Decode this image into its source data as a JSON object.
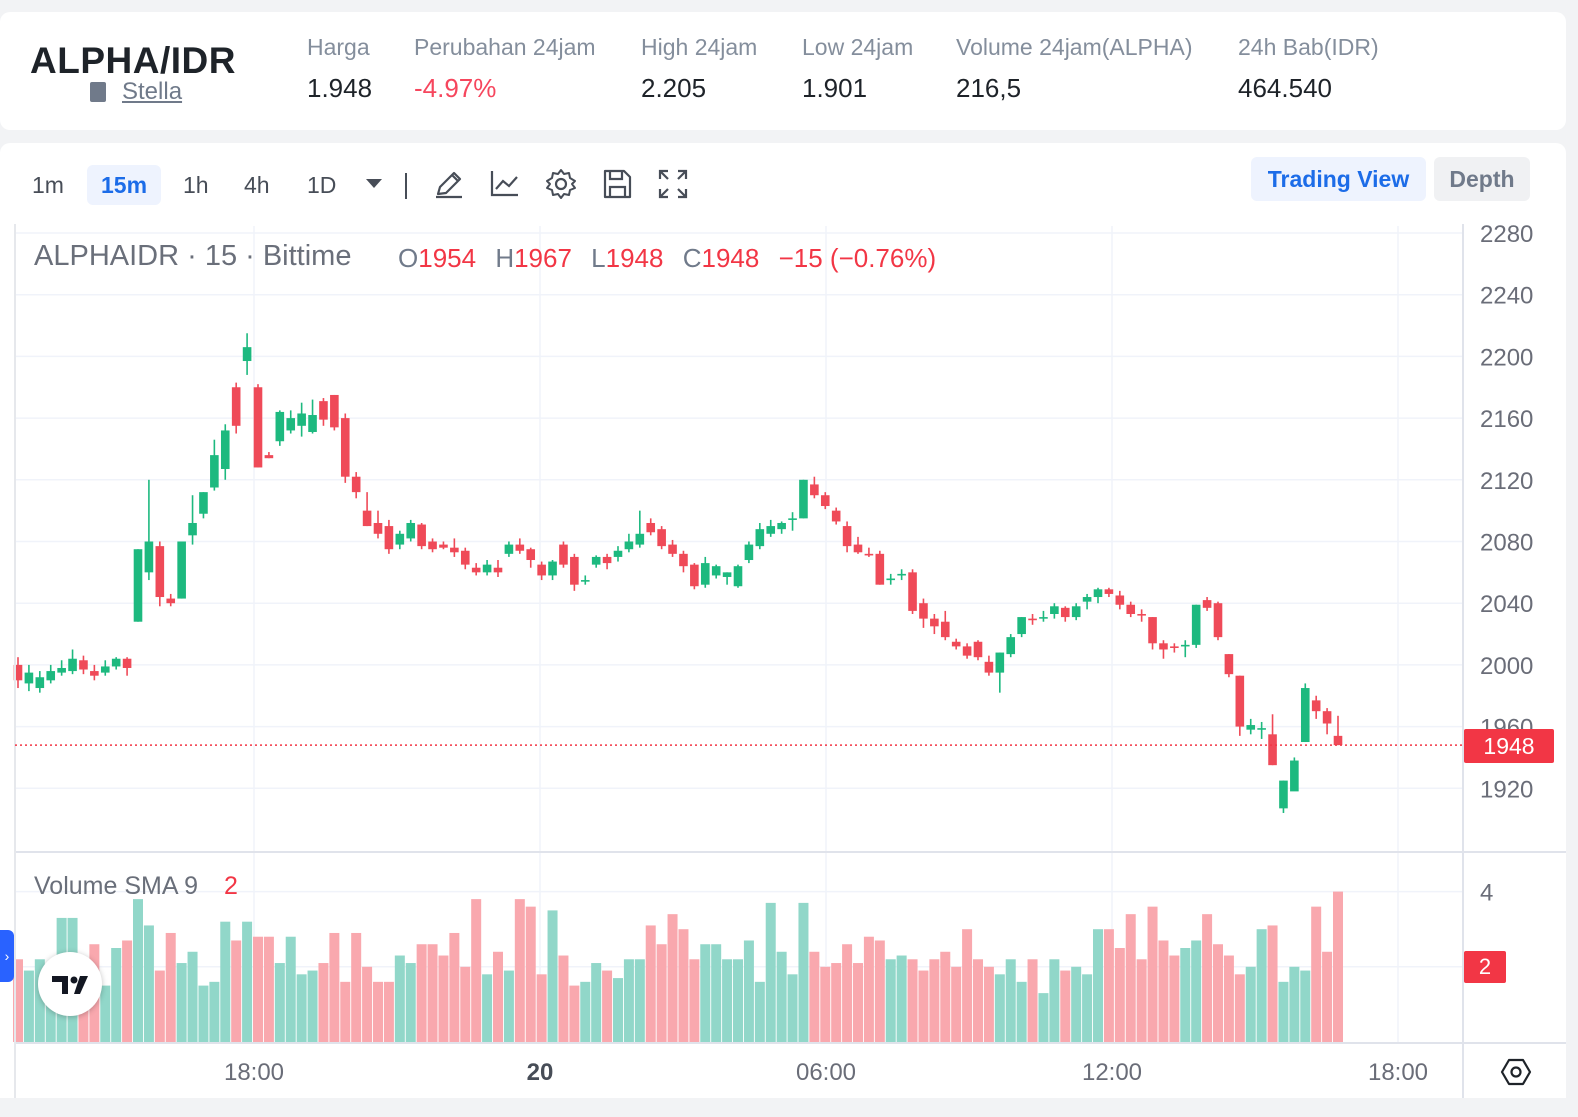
{
  "ticker": {
    "pair": "ALPHA/IDR",
    "sub_label": "Stella",
    "stats": [
      {
        "label": "Harga",
        "value": "1.948",
        "negative": false
      },
      {
        "label": "Perubahan 24jam",
        "value": "-4.97%",
        "negative": true
      },
      {
        "label": "High 24jam",
        "value": "2.205",
        "negative": false
      },
      {
        "label": "Low 24jam",
        "value": "1.901",
        "negative": false
      },
      {
        "label": "Volume 24jam(ALPHA)",
        "value": "216,5",
        "negative": false
      },
      {
        "label": "24h Bab(IDR)",
        "value": "464.540",
        "negative": false
      }
    ]
  },
  "toolbar": {
    "timeframes": [
      "1m",
      "15m",
      "1h",
      "4h",
      "1D"
    ],
    "active_timeframe": "15m",
    "icons": [
      "pencil-icon",
      "indicator-chart-icon",
      "gear-icon",
      "save-icon",
      "fullscreen-icon"
    ],
    "trading_view_label": "Trading View",
    "depth_label": "Depth"
  },
  "chart_data": {
    "type": "candlestick",
    "legend": {
      "symbol": "ALPHAIDR · 15 · Bittime"
    },
    "ohlc": {
      "o_key": "O",
      "o": "1954",
      "h_key": "H",
      "h": "1967",
      "l_key": "L",
      "l": "1948",
      "c_key": "C",
      "c": "1948",
      "change": "−15 (−0.76%)"
    },
    "last_price": "1948",
    "ylim": [
      1890,
      2290
    ],
    "y_ticks": [
      1920,
      1960,
      2000,
      2040,
      2080,
      2120,
      2160,
      2200,
      2240,
      2280
    ],
    "x_ticks": [
      "18:00",
      "20",
      "06:00",
      "12:00",
      "18:00"
    ],
    "candles": [
      [
        2000,
        1990,
        2005,
        1985
      ],
      [
        1988,
        1995,
        2000,
        1983
      ],
      [
        1985,
        1992,
        1996,
        1982
      ],
      [
        1990,
        1996,
        2000,
        1988
      ],
      [
        1995,
        1998,
        2003,
        1993
      ],
      [
        1996,
        2004,
        2010,
        1994
      ],
      [
        2003,
        1997,
        2006,
        1994
      ],
      [
        1996,
        1993,
        2000,
        1990
      ],
      [
        1995,
        1999,
        2003,
        1993
      ],
      [
        1999,
        2004,
        2005,
        1997
      ],
      [
        2004,
        1998,
        2005,
        1993
      ],
      [
        2028,
        2075,
        2075,
        2028
      ],
      [
        2060,
        2080,
        2120,
        2055
      ],
      [
        2077,
        2044,
        2080,
        2038
      ],
      [
        2043,
        2040,
        2046,
        2038
      ],
      [
        2043,
        2080,
        2080,
        2043
      ],
      [
        2084,
        2092,
        2110,
        2078
      ],
      [
        2098,
        2112,
        2112,
        2095
      ],
      [
        2115,
        2136,
        2146,
        2113
      ],
      [
        2127,
        2152,
        2156,
        2120
      ],
      [
        2180,
        2155,
        2183,
        2150
      ],
      [
        2197,
        2206,
        2215,
        2188
      ],
      [
        2180,
        2128,
        2182,
        2128
      ],
      [
        2136,
        2134,
        2138,
        2134
      ],
      [
        2145,
        2164,
        2165,
        2142
      ],
      [
        2152,
        2160,
        2165,
        2150
      ],
      [
        2155,
        2163,
        2170,
        2148
      ],
      [
        2151,
        2162,
        2172,
        2150
      ],
      [
        2171,
        2159,
        2173,
        2155
      ],
      [
        2175,
        2154,
        2175,
        2152
      ],
      [
        2160,
        2122,
        2163,
        2118
      ],
      [
        2122,
        2112,
        2125,
        2108
      ],
      [
        2100,
        2090,
        2112,
        2090
      ],
      [
        2092,
        2085,
        2100,
        2082
      ],
      [
        2090,
        2075,
        2094,
        2072
      ],
      [
        2078,
        2085,
        2087,
        2075
      ],
      [
        2082,
        2092,
        2094,
        2080
      ],
      [
        2091,
        2077,
        2092,
        2075
      ],
      [
        2080,
        2075,
        2082,
        2073
      ],
      [
        2078,
        2076,
        2080,
        2075
      ],
      [
        2076,
        2073,
        2082,
        2070
      ],
      [
        2074,
        2065,
        2076,
        2062
      ],
      [
        2063,
        2060,
        2066,
        2058
      ],
      [
        2060,
        2065,
        2068,
        2058
      ],
      [
        2063,
        2060,
        2068,
        2057
      ],
      [
        2072,
        2078,
        2080,
        2070
      ],
      [
        2078,
        2074,
        2082,
        2072
      ],
      [
        2075,
        2068,
        2076,
        2063
      ],
      [
        2065,
        2058,
        2067,
        2055
      ],
      [
        2058,
        2067,
        2068,
        2055
      ],
      [
        2078,
        2065,
        2080,
        2063
      ],
      [
        2070,
        2052,
        2072,
        2048
      ],
      [
        2055,
        2055,
        2058,
        2052
      ],
      [
        2065,
        2070,
        2071,
        2063
      ],
      [
        2070,
        2066,
        2072,
        2062
      ],
      [
        2070,
        2074,
        2077,
        2067
      ],
      [
        2075,
        2080,
        2085,
        2073
      ],
      [
        2078,
        2085,
        2100,
        2076
      ],
      [
        2092,
        2086,
        2095,
        2084
      ],
      [
        2088,
        2077,
        2090,
        2075
      ],
      [
        2078,
        2072,
        2081,
        2070
      ],
      [
        2072,
        2064,
        2074,
        2060
      ],
      [
        2065,
        2051,
        2066,
        2049
      ],
      [
        2052,
        2066,
        2070,
        2050
      ],
      [
        2058,
        2064,
        2065,
        2056
      ],
      [
        2057,
        2060,
        2060,
        2052
      ],
      [
        2051,
        2064,
        2065,
        2050
      ],
      [
        2068,
        2078,
        2080,
        2066
      ],
      [
        2077,
        2088,
        2092,
        2075
      ],
      [
        2085,
        2090,
        2094,
        2083
      ],
      [
        2088,
        2092,
        2093,
        2085
      ],
      [
        2094,
        2095,
        2099,
        2087
      ],
      [
        2095,
        2120,
        2120,
        2095
      ],
      [
        2117,
        2110,
        2122,
        2108
      ],
      [
        2110,
        2103,
        2112,
        2101
      ],
      [
        2100,
        2093,
        2102,
        2091
      ],
      [
        2090,
        2077,
        2093,
        2073
      ],
      [
        2078,
        2073,
        2083,
        2072
      ],
      [
        2072,
        2071,
        2076,
        2070
      ],
      [
        2072,
        2052,
        2074,
        2052
      ],
      [
        2055,
        2056,
        2059,
        2052
      ],
      [
        2058,
        2059,
        2062,
        2055
      ],
      [
        2060,
        2035,
        2062,
        2033
      ],
      [
        2040,
        2030,
        2043,
        2024
      ],
      [
        2030,
        2025,
        2033,
        2020
      ],
      [
        2028,
        2018,
        2035,
        2016
      ],
      [
        2015,
        2012,
        2017,
        2010
      ],
      [
        2012,
        2006,
        2014,
        2004
      ],
      [
        2015,
        2005,
        2016,
        2003
      ],
      [
        2002,
        1995,
        2006,
        1993
      ],
      [
        1995,
        2008,
        2008,
        1982
      ],
      [
        2007,
        2018,
        2020,
        2005
      ],
      [
        2020,
        2031,
        2031,
        2018
      ],
      [
        2030,
        2029,
        2033,
        2026
      ],
      [
        2030,
        2031,
        2035,
        2028
      ],
      [
        2033,
        2038,
        2040,
        2030
      ],
      [
        2037,
        2031,
        2038,
        2028
      ],
      [
        2031,
        2038,
        2040,
        2029
      ],
      [
        2041,
        2044,
        2046,
        2036
      ],
      [
        2044,
        2049,
        2050,
        2040
      ],
      [
        2049,
        2046,
        2050,
        2044
      ],
      [
        2045,
        2039,
        2048,
        2036
      ],
      [
        2039,
        2033,
        2041,
        2031
      ],
      [
        2033,
        2032,
        2036,
        2028
      ],
      [
        2031,
        2014,
        2031,
        2010
      ],
      [
        2014,
        2010,
        2016,
        2004
      ],
      [
        2012,
        2011,
        2014,
        2008
      ],
      [
        2012,
        2013,
        2016,
        2005
      ],
      [
        2013,
        2039,
        2039,
        2011
      ],
      [
        2042,
        2037,
        2044,
        2035
      ],
      [
        2040,
        2018,
        2041,
        2016
      ],
      [
        2007,
        1994,
        2007,
        1992
      ],
      [
        1993,
        1960,
        1993,
        1954
      ],
      [
        1958,
        1961,
        1965,
        1955
      ],
      [
        1958,
        1959,
        1963,
        1952
      ],
      [
        1955,
        1935,
        1968,
        1935
      ],
      [
        1907,
        1925,
        1925,
        1904
      ],
      [
        1918,
        1938,
        1940,
        1920
      ],
      [
        1950,
        1985,
        1988,
        1950
      ],
      [
        1977,
        1970,
        1980,
        1965
      ],
      [
        1970,
        1962,
        1972,
        1955
      ],
      [
        1954,
        1948,
        1967,
        1948
      ]
    ],
    "volumes": [
      2.2,
      1.9,
      2.2,
      1.8,
      3.3,
      3.3,
      2.1,
      2.6,
      1.5,
      2.5,
      2.7,
      3.8,
      3.1,
      1.9,
      2.9,
      2.1,
      2.4,
      1.5,
      1.6,
      3.2,
      2.7,
      3.2,
      2.8,
      2.8,
      2.1,
      2.8,
      1.8,
      1.9,
      2.1,
      2.9,
      1.6,
      2.9,
      2.0,
      1.6,
      1.6,
      2.3,
      2.1,
      2.6,
      2.6,
      2.3,
      2.9,
      2.0,
      3.8,
      1.8,
      2.4,
      1.9,
      3.8,
      3.6,
      1.8,
      3.5,
      2.3,
      1.5,
      1.6,
      2.1,
      1.9,
      1.7,
      2.2,
      2.2,
      3.1,
      2.6,
      3.4,
      3.0,
      2.2,
      2.6,
      2.6,
      2.2,
      2.2,
      2.7,
      1.6,
      3.7,
      2.4,
      1.8,
      3.7,
      2.4,
      2.0,
      2.1,
      2.6,
      2.1,
      2.8,
      2.7,
      2.2,
      2.3,
      2.2,
      1.9,
      2.2,
      2.4,
      2.0,
      3.0,
      2.2,
      2.0,
      1.8,
      2.2,
      1.6,
      2.2,
      1.3,
      2.2,
      1.9,
      2.0,
      1.8,
      3.0,
      3.0,
      2.5,
      3.4,
      2.2,
      3.6,
      2.7,
      2.3,
      2.5,
      2.7,
      3.4,
      2.6,
      2.3,
      1.8,
      2.0,
      3.0,
      3.1,
      1.6,
      2.0,
      1.9,
      3.6,
      2.4,
      4.0,
      2.3,
      2.2
    ],
    "vol_legend": {
      "label": "Volume SMA 9",
      "value": "2"
    },
    "vol_ticks": [
      "4"
    ],
    "vol_tag": "2"
  },
  "colors": {
    "up": "#26a69a",
    "down": "#ef5350",
    "up_body": "#1db97f",
    "down_body": "#ef4a58",
    "accent": "#1c6ce8"
  }
}
